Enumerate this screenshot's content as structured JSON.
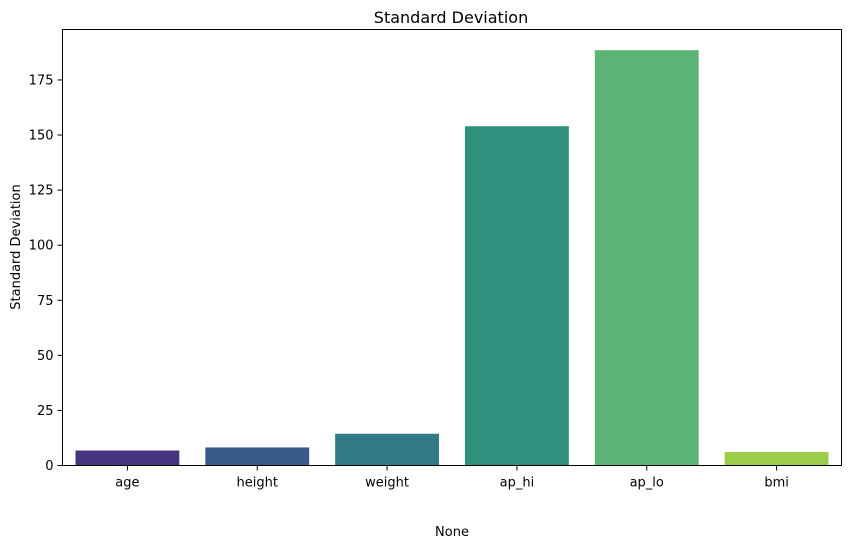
{
  "chart_data": {
    "type": "bar",
    "title": "Standard Deviation",
    "xlabel": "None",
    "ylabel": "Standard Deviation",
    "categories": [
      "age",
      "height",
      "weight",
      "ap_hi",
      "ap_lo",
      "bmi"
    ],
    "values": [
      6.8,
      8.2,
      14.4,
      154.0,
      188.5,
      6.1
    ],
    "colors": [
      "#463480",
      "#3b5a8c",
      "#307a87",
      "#30907e",
      "#5bb374",
      "#9bcc4a"
    ],
    "ylim": [
      0,
      197.9
    ],
    "yticks": [
      0,
      25,
      50,
      75,
      100,
      125,
      150,
      175
    ],
    "grid": false,
    "legend": "none"
  }
}
